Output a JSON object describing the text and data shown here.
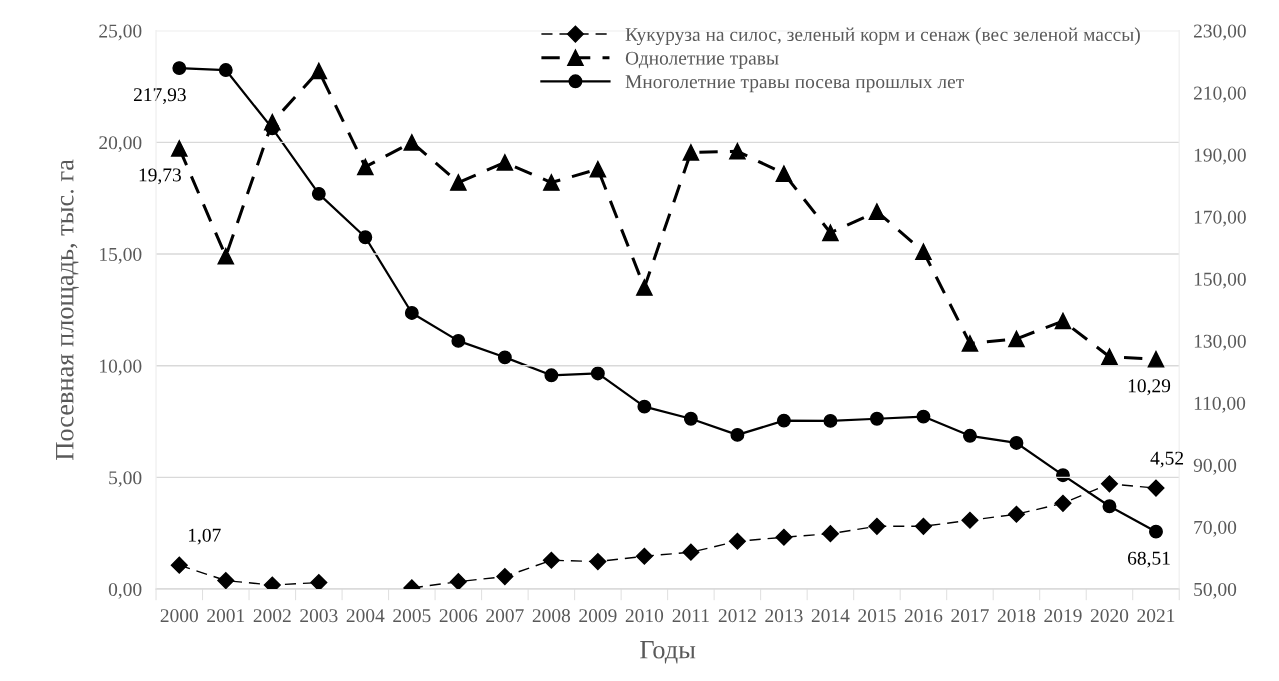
{
  "chart_data": {
    "type": "line",
    "xlabel": "Годы",
    "ylabel": "Посевная площадь, тыс. га",
    "categories": [
      "2000",
      "2001",
      "2002",
      "2003",
      "2004",
      "2005",
      "2006",
      "2007",
      "2008",
      "2009",
      "2010",
      "2011",
      "2012",
      "2013",
      "2014",
      "2015",
      "2016",
      "2017",
      "2018",
      "2019",
      "2020",
      "2021"
    ],
    "series": [
      {
        "name": "Кукуруза на силос, зеленый корм и сенаж (вес зеленой массы)",
        "color": "#000000",
        "marker": "diamond",
        "line_style": "dashed",
        "values": [
          1.07,
          0.38,
          0.18,
          0.29,
          null,
          0.05,
          0.33,
          0.56,
          1.29,
          1.23,
          1.47,
          1.65,
          2.14,
          2.32,
          2.48,
          2.81,
          2.81,
          3.08,
          3.35,
          3.84,
          4.71,
          4.52
        ],
        "value_labels": [
          "1,07",
          null,
          null,
          null,
          null,
          null,
          null,
          null,
          null,
          null,
          null,
          null,
          null,
          null,
          null,
          null,
          null,
          null,
          null,
          null,
          null,
          "4,52"
        ]
      },
      {
        "name": "Однолетние травы",
        "color": "#000000",
        "marker": "triangle",
        "line_style": "dashed",
        "values": [
          19.73,
          14.9,
          20.9,
          23.2,
          18.9,
          20.0,
          18.2,
          19.1,
          18.2,
          18.8,
          13.5,
          19.55,
          19.6,
          18.6,
          15.95,
          16.9,
          15.1,
          11.0,
          11.2,
          12.0,
          10.4,
          10.29
        ],
        "value_labels": [
          "19,73",
          null,
          null,
          null,
          null,
          null,
          null,
          null,
          null,
          null,
          null,
          null,
          null,
          null,
          null,
          null,
          null,
          null,
          null,
          null,
          null,
          "10,29"
        ]
      },
      {
        "name": "Многолетние травы посева прошлых лет",
        "color": "#000000",
        "marker": "circle",
        "line_style": "solid",
        "axis": "y2",
        "values": [
          217.93,
          217.3,
          198.5,
          177.4,
          163.4,
          139.0,
          130.0,
          124.7,
          118.9,
          119.5,
          108.8,
          104.9,
          99.7,
          104.3,
          104.2,
          104.9,
          105.6,
          99.4,
          97.1,
          86.7,
          76.7,
          68.51
        ],
        "value_labels": [
          "217,93",
          null,
          null,
          null,
          null,
          null,
          null,
          null,
          null,
          null,
          null,
          null,
          null,
          null,
          null,
          null,
          null,
          null,
          null,
          null,
          null,
          "68,51"
        ]
      }
    ],
    "ylim": [
      0,
      25
    ],
    "yticks": [
      {
        "value": 0,
        "label": "0,00"
      },
      {
        "value": 5,
        "label": "5,00"
      },
      {
        "value": 10,
        "label": "10,00"
      },
      {
        "value": 15,
        "label": "15,00"
      },
      {
        "value": 20,
        "label": "20,00"
      },
      {
        "value": 25,
        "label": "25,00"
      }
    ],
    "y2lim": [
      50,
      230
    ],
    "y2ticks": [
      {
        "value": 50,
        "label": "50,00"
      },
      {
        "value": 70,
        "label": "70,00"
      },
      {
        "value": 90,
        "label": "90,00"
      },
      {
        "value": 110,
        "label": "110,00"
      },
      {
        "value": 130,
        "label": "130,00"
      },
      {
        "value": 150,
        "label": "150,00"
      },
      {
        "value": 170,
        "label": "170,00"
      },
      {
        "value": 190,
        "label": "190,00"
      },
      {
        "value": 210,
        "label": "210,00"
      },
      {
        "value": 230,
        "label": "230,00"
      }
    ],
    "grid": "y",
    "legend": "top right"
  }
}
